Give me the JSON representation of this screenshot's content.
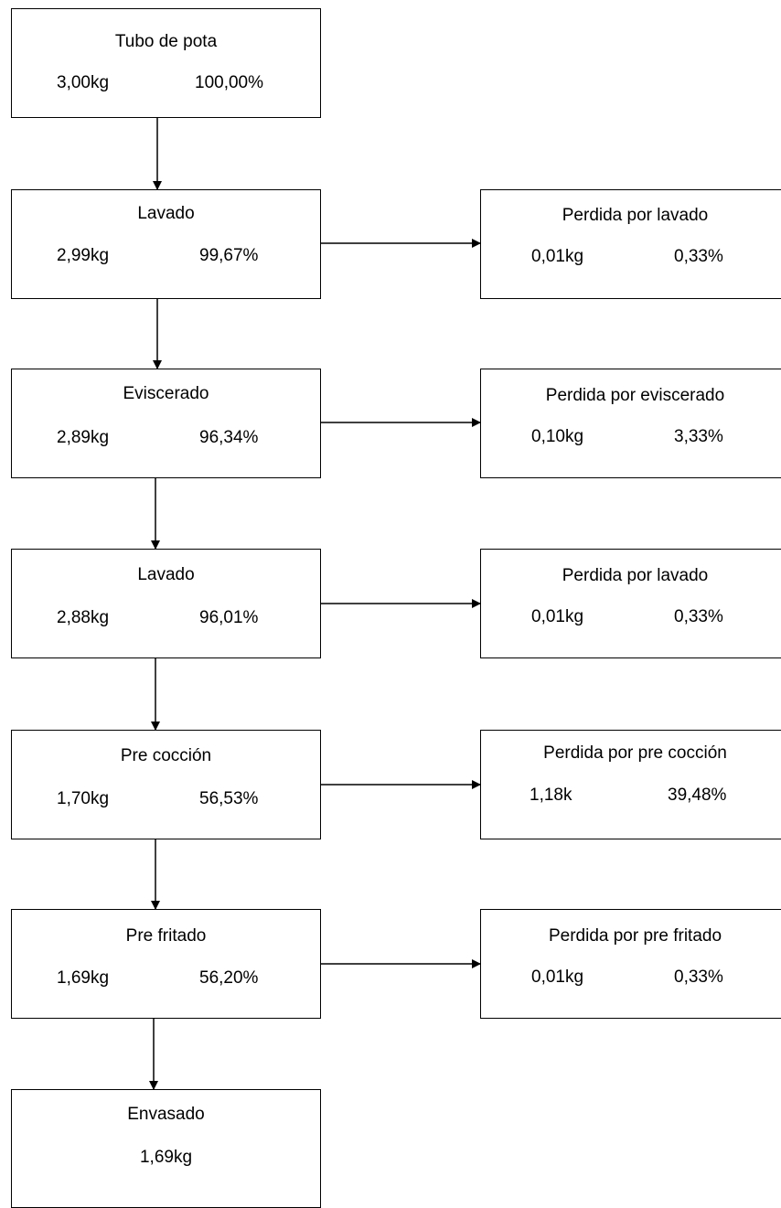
{
  "steps": [
    {
      "title": "Tubo de pota",
      "weight": "3,00kg",
      "percent": "100,00%"
    },
    {
      "title": "Lavado",
      "weight": "2,99kg",
      "percent": "99,67%"
    },
    {
      "title": "Eviscerado",
      "weight": "2,89kg",
      "percent": "96,34%"
    },
    {
      "title": "Lavado",
      "weight": "2,88kg",
      "percent": "96,01%"
    },
    {
      "title": "Pre cocción",
      "weight": "1,70kg",
      "percent": "56,53%"
    },
    {
      "title": "Pre fritado",
      "weight": "1,69kg",
      "percent": "56,20%"
    },
    {
      "title": "Envasado",
      "weight": "1,69kg"
    }
  ],
  "losses": [
    {
      "title": "Perdida por lavado",
      "weight": "0,01kg",
      "percent": "0,33%"
    },
    {
      "title": "Perdida por eviscerado",
      "weight": "0,10kg",
      "percent": "3,33%"
    },
    {
      "title": "Perdida por lavado",
      "weight": "0,01kg",
      "percent": "0,33%"
    },
    {
      "title": "Perdida por pre cocción",
      "weight": "1,18k",
      "percent": "39,48%"
    },
    {
      "title": "Perdida por pre fritado",
      "weight": "0,01kg",
      "percent": "0,33%"
    }
  ]
}
